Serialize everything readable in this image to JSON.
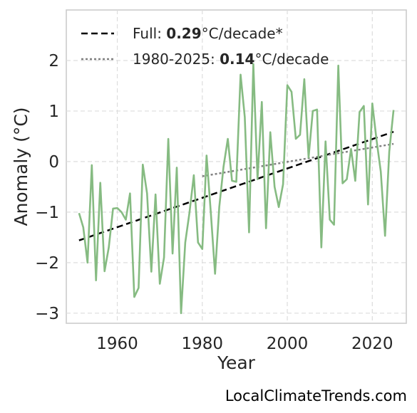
{
  "chart_data": {
    "type": "line",
    "xlabel": "Year",
    "ylabel": "Anomaly (°C)",
    "xlim": [
      1948,
      2028
    ],
    "ylim": [
      -3.2,
      3.0
    ],
    "xticks": [
      1960,
      1980,
      2000,
      2020
    ],
    "yticks": [
      -3,
      -2,
      -1,
      0,
      1,
      2
    ],
    "ytick_labels": [
      "−3",
      "−2",
      "−1",
      "0",
      "1",
      "2"
    ],
    "grid": true,
    "legend_position": "top-left",
    "series": [
      {
        "color": "#86bb82",
        "x": [
          1951,
          1952,
          1953,
          1954,
          1955,
          1956,
          1957,
          1958,
          1959,
          1960,
          1961,
          1962,
          1963,
          1964,
          1965,
          1966,
          1967,
          1968,
          1969,
          1970,
          1971,
          1972,
          1973,
          1974,
          1975,
          1976,
          1977,
          1978,
          1979,
          1980,
          1981,
          1982,
          1983,
          1984,
          1985,
          1986,
          1987,
          1988,
          1989,
          1990,
          1991,
          1992,
          1993,
          1994,
          1995,
          1996,
          1997,
          1998,
          1999,
          2000,
          2001,
          2002,
          2003,
          2004,
          2005,
          2006,
          2007,
          2008,
          2009,
          2010,
          2011,
          2012,
          2013,
          2014,
          2015,
          2016,
          2017,
          2018,
          2019,
          2020,
          2021,
          2022,
          2023,
          2024,
          2025
        ],
        "y": [
          -1.02,
          -1.3,
          -2.0,
          -0.07,
          -2.35,
          -0.42,
          -2.17,
          -1.7,
          -0.93,
          -0.92,
          -1.0,
          -1.15,
          -0.63,
          -2.68,
          -2.5,
          -0.06,
          -0.63,
          -2.18,
          -0.65,
          -2.42,
          -1.9,
          0.45,
          -1.82,
          -0.12,
          -3.0,
          -1.6,
          -1.0,
          -0.27,
          -1.6,
          -1.73,
          0.12,
          -1.0,
          -2.22,
          -0.9,
          -0.1,
          0.45,
          -0.38,
          -0.4,
          1.72,
          0.88,
          -1.4,
          1.93,
          -0.35,
          1.18,
          -1.32,
          0.58,
          -0.5,
          -0.9,
          -0.45,
          1.51,
          1.38,
          0.45,
          0.53,
          1.63,
          0.08,
          1.0,
          1.03,
          -1.7,
          0.4,
          -1.15,
          -1.25,
          1.9,
          -0.43,
          -0.35,
          0.25,
          -0.38,
          0.98,
          1.1,
          -0.85,
          1.15,
          0.42,
          -0.2,
          -1.47,
          0.2,
          1.02
        ]
      }
    ],
    "trends": [
      {
        "label_prefix": "Full: ",
        "label_value": "0.29",
        "label_suffix": "°C/decade*",
        "style": "dashed",
        "color": "#000000",
        "x": [
          1951,
          2025
        ],
        "y": [
          -1.56,
          0.59
        ]
      },
      {
        "label_prefix": "1980-2025: ",
        "label_value": "0.14",
        "label_suffix": "°C/decade",
        "style": "dotted",
        "color": "#808080",
        "x": [
          1980,
          2025
        ],
        "y": [
          -0.29,
          0.35
        ]
      }
    ]
  },
  "watermark": "LocalClimateTrends.com"
}
